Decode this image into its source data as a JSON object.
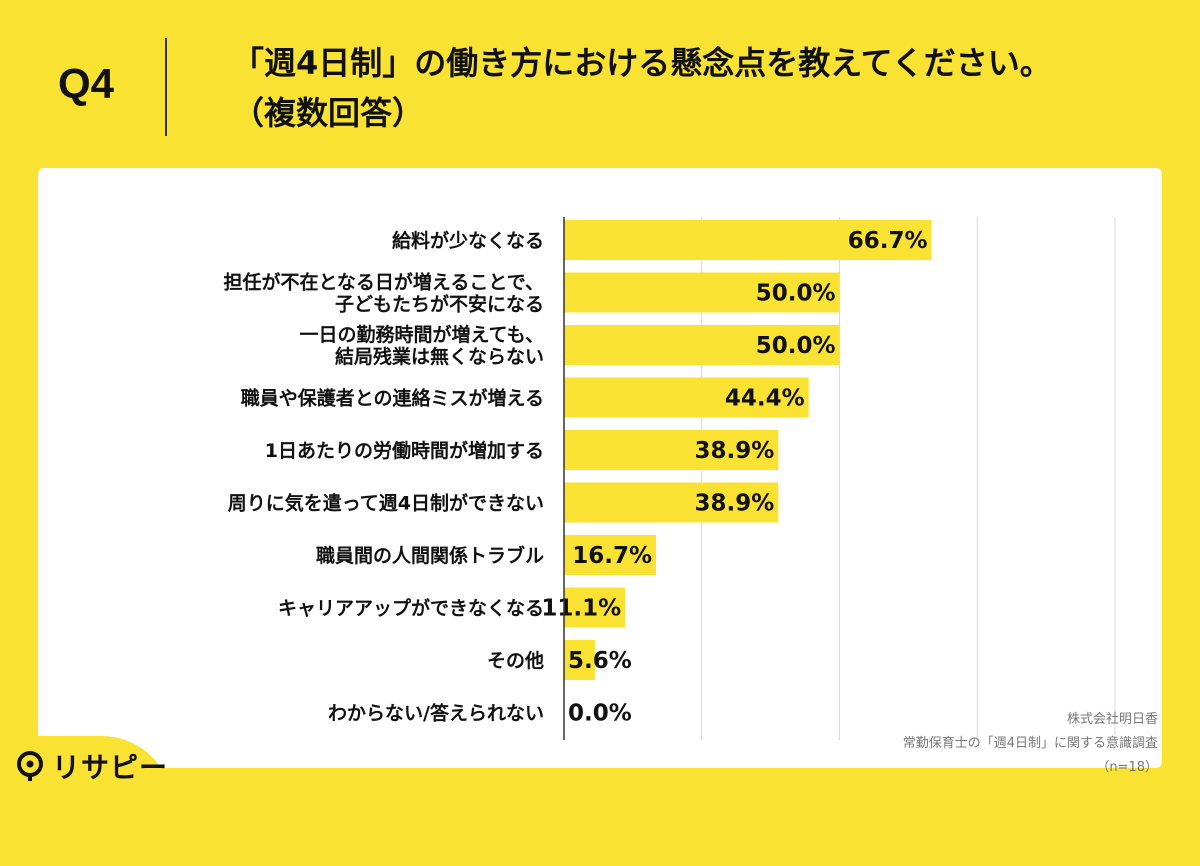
{
  "header": {
    "question_label": "Q4",
    "question_line1": "「週4日制」の働き方における懸念点を教えてください。",
    "question_line2": "（複数回答）"
  },
  "chart_data": {
    "type": "bar",
    "orientation": "horizontal",
    "categories": [
      [
        "給料が少なくなる"
      ],
      [
        "担任が不在となる日が増えることで、",
        "子どもたちが不安になる"
      ],
      [
        "一日の勤務時間が増えても、",
        "結局残業は無くならない"
      ],
      [
        "職員や保護者との連絡ミスが増える"
      ],
      [
        "1日あたりの労働時間が増加する"
      ],
      [
        "周りに気を遣って週4日制ができない"
      ],
      [
        "職員間の人間関係トラブル"
      ],
      [
        "キャリアアップができなくなる"
      ],
      [
        "その他"
      ],
      [
        "わからない/答えられない"
      ]
    ],
    "values": [
      66.7,
      50.0,
      50.0,
      44.4,
      38.9,
      38.9,
      16.7,
      11.1,
      5.6,
      0.0
    ],
    "value_labels": [
      "66.7%",
      "50.0%",
      "50.0%",
      "44.4%",
      "38.9%",
      "38.9%",
      "16.7%",
      "11.1%",
      "5.6%",
      "0.0%"
    ],
    "xlim": [
      0,
      100
    ],
    "grid": true,
    "bar_color": "#F9E232"
  },
  "footer": {
    "company": "株式会社明日香",
    "survey": "常勤保育士の「週4日制」に関する意識調査",
    "sample": "（n=18）"
  },
  "logo": {
    "text": "リサピー"
  },
  "colors": {
    "background": "#F9E232",
    "panel": "#FFFFFF",
    "grid": "#D9D9D9",
    "axis": "#333333"
  }
}
